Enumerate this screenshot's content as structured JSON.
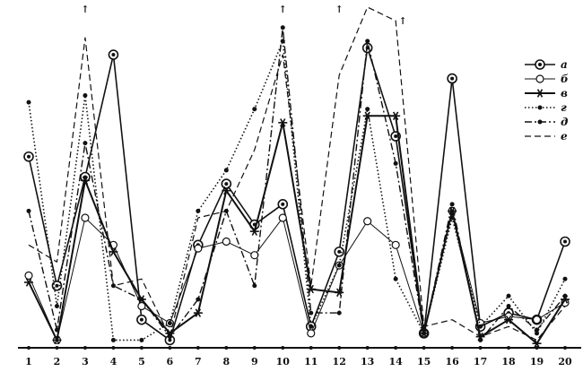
{
  "chart_data": {
    "type": "line",
    "title": "",
    "xlabel": "",
    "ylabel": "",
    "x": [
      "1",
      "2",
      "3",
      "4",
      "5",
      "6",
      "7",
      "8",
      "9",
      "10",
      "11",
      "12",
      "13",
      "14",
      "15",
      "16",
      "17",
      "18",
      "19",
      "20"
    ],
    "ylim": [
      0,
      100
    ],
    "grid": false,
    "legend_position": "top-right",
    "series": [
      {
        "name": "a",
        "values": [
          56,
          18,
          50,
          86,
          8,
          2,
          30,
          48,
          36,
          42,
          6,
          28,
          88,
          62,
          4,
          79,
          6,
          10,
          8,
          31
        ]
      },
      {
        "name": "б",
        "values": [
          21,
          2,
          38,
          30,
          12,
          7,
          29,
          31,
          27,
          38,
          4,
          24,
          37,
          30,
          4,
          40,
          7,
          9,
          8,
          13
        ]
      },
      {
        "name": "в",
        "values": [
          19,
          2,
          49,
          28,
          14,
          4,
          10,
          46,
          34,
          66,
          17,
          16,
          68,
          68,
          4,
          40,
          3,
          8,
          1,
          14
        ]
      },
      {
        "name": "г",
        "values": [
          72,
          12,
          74,
          2,
          2,
          7,
          40,
          52,
          70,
          90,
          6,
          24,
          70,
          20,
          4,
          38,
          6,
          15,
          4,
          20
        ]
      },
      {
        "name": "д",
        "values": [
          40,
          5,
          60,
          18,
          14,
          3,
          14,
          40,
          18,
          94,
          10,
          10,
          90,
          54,
          4,
          42,
          2,
          12,
          5,
          15
        ]
      },
      {
        "name": "е",
        "values": [
          30,
          25,
          91,
          18,
          20,
          3,
          38,
          40,
          58,
          86,
          18,
          80,
          100,
          96,
          6,
          8,
          3,
          6,
          2,
          12
        ]
      }
    ],
    "annotations": [
      "↑",
      "↑",
      "↑",
      "↑"
    ]
  }
}
